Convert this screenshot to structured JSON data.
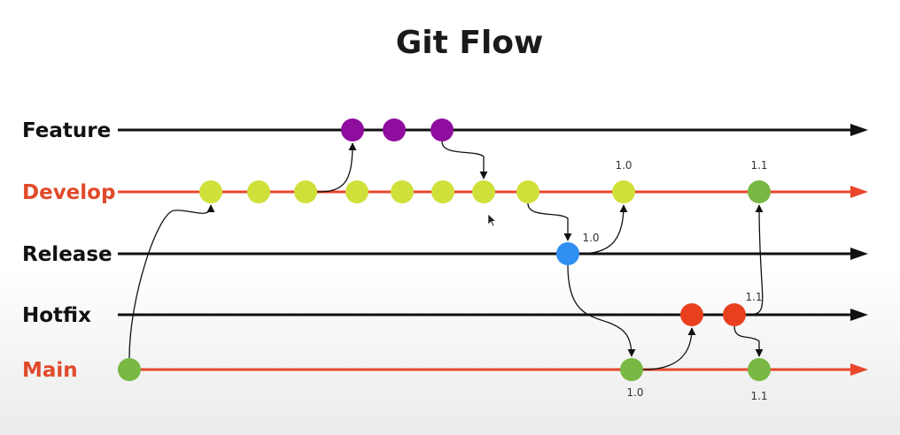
{
  "title": "Git Flow",
  "colors": {
    "black": "#111111",
    "red": "#e8472c",
    "label_red": "#e04a2a",
    "yellow_green": "#cfe03a",
    "green": "#78b843",
    "purple": "#8e0c9e",
    "blue": "#2f8ff2",
    "hotfix_red": "#e8401f"
  },
  "lanes": [
    {
      "id": "feature",
      "label": "Feature",
      "line_color": "black",
      "label_color": "black"
    },
    {
      "id": "develop",
      "label": "Develop",
      "line_color": "red",
      "label_color": "label_red"
    },
    {
      "id": "release",
      "label": "Release",
      "line_color": "black",
      "label_color": "black"
    },
    {
      "id": "hotfix",
      "label": "Hotfix",
      "line_color": "black",
      "label_color": "black"
    },
    {
      "id": "main",
      "label": "Main",
      "line_color": "red",
      "label_color": "label_red"
    }
  ],
  "commits": {
    "main_initial": {
      "lane": "main",
      "color": "green"
    },
    "dev_1": {
      "lane": "develop",
      "color": "yellow_green"
    },
    "dev_2": {
      "lane": "develop",
      "color": "yellow_green"
    },
    "dev_3": {
      "lane": "develop",
      "color": "yellow_green"
    },
    "dev_4": {
      "lane": "develop",
      "color": "yellow_green"
    },
    "dev_5": {
      "lane": "develop",
      "color": "yellow_green"
    },
    "dev_6": {
      "lane": "develop",
      "color": "yellow_green"
    },
    "dev_7": {
      "lane": "develop",
      "color": "yellow_green"
    },
    "dev_8": {
      "lane": "develop",
      "color": "yellow_green"
    },
    "dev_10": {
      "lane": "develop",
      "color": "yellow_green",
      "tag": "1.0"
    },
    "dev_11": {
      "lane": "develop",
      "color": "green",
      "tag": "1.1"
    },
    "feat_1": {
      "lane": "feature",
      "color": "purple"
    },
    "feat_2": {
      "lane": "feature",
      "color": "purple"
    },
    "feat_3": {
      "lane": "feature",
      "color": "purple"
    },
    "release_1": {
      "lane": "release",
      "color": "blue",
      "tag": "1.0"
    },
    "hotfix_1": {
      "lane": "hotfix",
      "color": "hotfix_red"
    },
    "hotfix_2": {
      "lane": "hotfix",
      "color": "hotfix_red",
      "tag": "1.1"
    },
    "main_10": {
      "lane": "main",
      "color": "green",
      "tag": "1.0"
    },
    "main_11": {
      "lane": "main",
      "color": "green",
      "tag": "1.1"
    }
  },
  "connections": [
    {
      "from": "main_initial",
      "to": "dev_1"
    },
    {
      "from": "dev_3",
      "to": "feat_1"
    },
    {
      "from": "feat_3",
      "to": "dev_7"
    },
    {
      "from": "dev_8",
      "to": "release_1"
    },
    {
      "from": "release_1",
      "to": "dev_10"
    },
    {
      "from": "release_1",
      "to": "main_10"
    },
    {
      "from": "main_10",
      "to": "hotfix_1"
    },
    {
      "from": "hotfix_2",
      "to": "dev_11"
    },
    {
      "from": "hotfix_2",
      "to": "main_11"
    }
  ]
}
